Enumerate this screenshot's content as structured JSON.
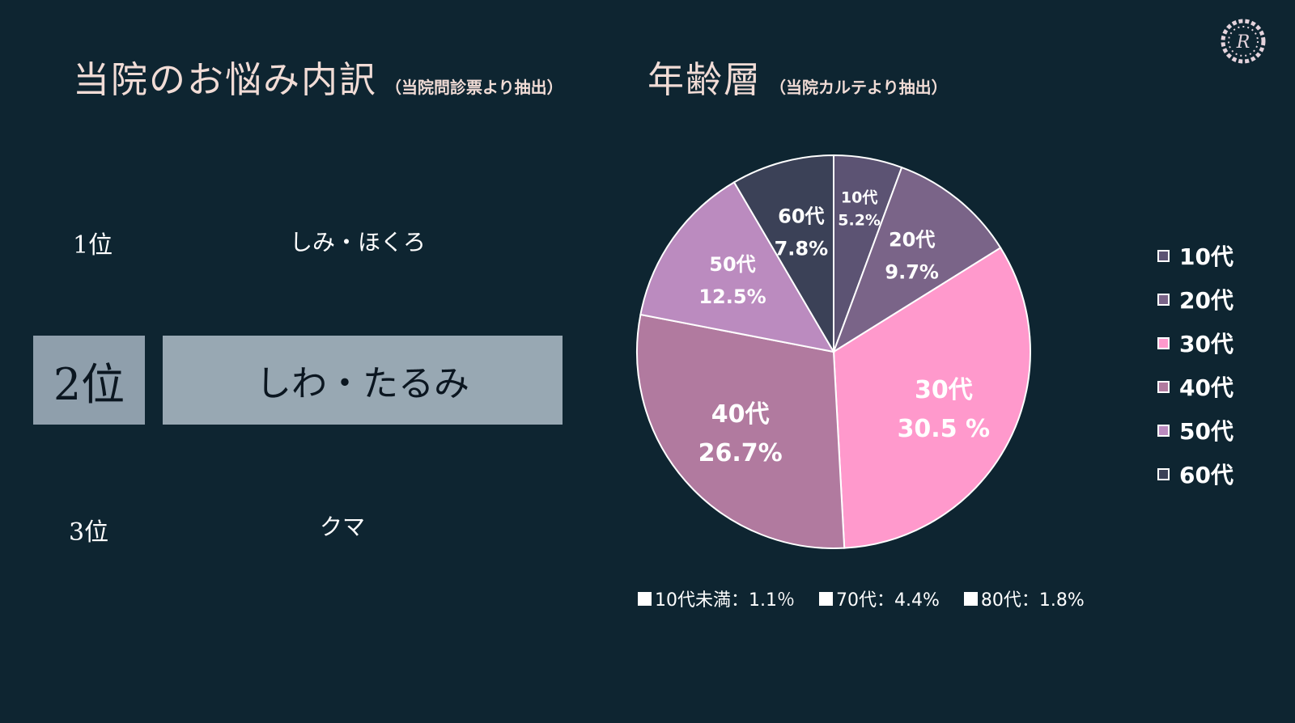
{
  "logo": {
    "icon": "floral-wreath-logo-icon",
    "letter": "R"
  },
  "left": {
    "title": "当院のお悩み内訳",
    "subtitle": "（当院問診票より抽出）",
    "ranking": [
      {
        "rank": "1位",
        "item": "しみ・ほくろ"
      },
      {
        "rank": "2位",
        "item": "しわ・たるみ"
      },
      {
        "rank": "3位",
        "item": "クマ"
      }
    ]
  },
  "right": {
    "title": "年齢層",
    "subtitle": "（当院カルテより抽出）",
    "notes": [
      {
        "label": "10代未満：1.1％"
      },
      {
        "label": "70代：4.4%"
      },
      {
        "label": "80代：1.8%"
      }
    ]
  },
  "chart_data": {
    "type": "pie",
    "title": "",
    "series": [
      {
        "name": "10代",
        "value": 5.2,
        "label": "10代",
        "pct_label": "5.2%",
        "color": "#5c5373"
      },
      {
        "name": "20代",
        "value": 9.7,
        "label": "20代",
        "pct_label": "9.7%",
        "color": "#7a6488"
      },
      {
        "name": "30代",
        "value": 30.5,
        "label": "30代",
        "pct_label": "30.5 %",
        "color": "#ff99cc"
      },
      {
        "name": "40代",
        "value": 26.7,
        "label": "40代",
        "pct_label": "26.7%",
        "color": "#b17a9f"
      },
      {
        "name": "50代",
        "value": 12.5,
        "label": "50代",
        "pct_label": "12.5%",
        "color": "#bb8bbf"
      },
      {
        "name": "60代",
        "value": 7.8,
        "label": "60代",
        "pct_label": "7.8%",
        "color": "#3b4157"
      }
    ],
    "start_angle_deg": 0,
    "direction": "clockwise",
    "legend_position": "right",
    "slice_border_color": "#ffffff"
  }
}
